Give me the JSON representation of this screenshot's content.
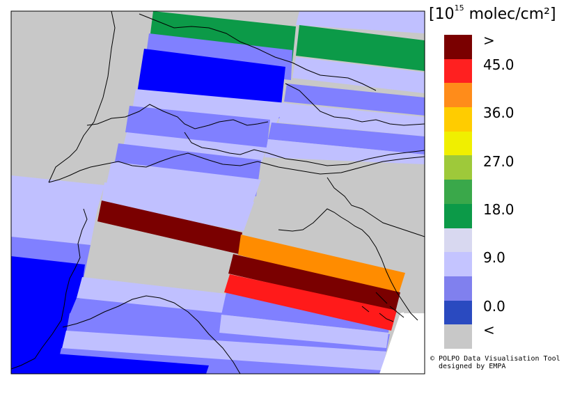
{
  "legend": {
    "prefix": "[10",
    "exponent": "15",
    "unit": " molec/cm²]",
    "colors": [
      "#7a0000",
      "#ff2020",
      "#ff8c1a",
      "#ffcc00",
      "#f0ef00",
      "#9ec93a",
      "#3aa84a",
      "#0c9a48",
      "#d8d8f0",
      "#c4c4ff",
      "#8080ee",
      "#2a4ac0",
      "#c8c8c8"
    ],
    "labels": [
      {
        "text": ">",
        "slot": 0
      },
      {
        "text": "45.0",
        "slot": 1
      },
      {
        "text": "36.0",
        "slot": 3
      },
      {
        "text": "27.0",
        "slot": 5
      },
      {
        "text": "18.0",
        "slot": 7
      },
      {
        "text": "9.0",
        "slot": 9
      },
      {
        "text": "0.0",
        "slot": 11
      },
      {
        "text": "<",
        "slot": 12
      }
    ]
  },
  "credit": {
    "line1": "© POLPO Data Visualisation Tool",
    "line2": "  designed by EMPA"
  },
  "map": {
    "background": "#c8c8c8",
    "frame": "#000000",
    "colors": {
      "dark_red": "#7a0000",
      "red": "#ff1a1a",
      "orange": "#ff8c00",
      "green": "#0c9a48",
      "blue": "#0000ff",
      "mid_blue": "#8080ff",
      "light_blue": "#c0c0ff",
      "grey": "#c8c8c8"
    }
  }
}
